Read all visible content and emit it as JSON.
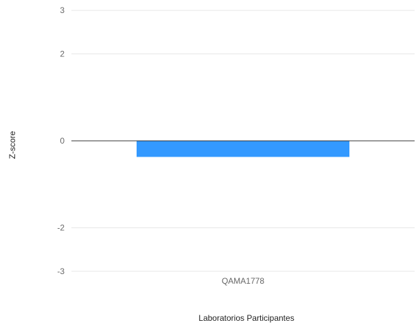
{
  "chart_data": {
    "type": "bar",
    "categories": [
      "QAMA1778"
    ],
    "values": [
      -0.37
    ],
    "xlabel": "Laboratorios Participantes",
    "ylabel": "Z-score",
    "y_ticks": [
      3,
      2,
      0,
      -2,
      -3
    ],
    "ylim": [
      -3,
      3
    ],
    "grid": true,
    "bar_color": "#3399ff",
    "zero_line_color": "#333333",
    "grid_color": "#e6e6e6"
  }
}
